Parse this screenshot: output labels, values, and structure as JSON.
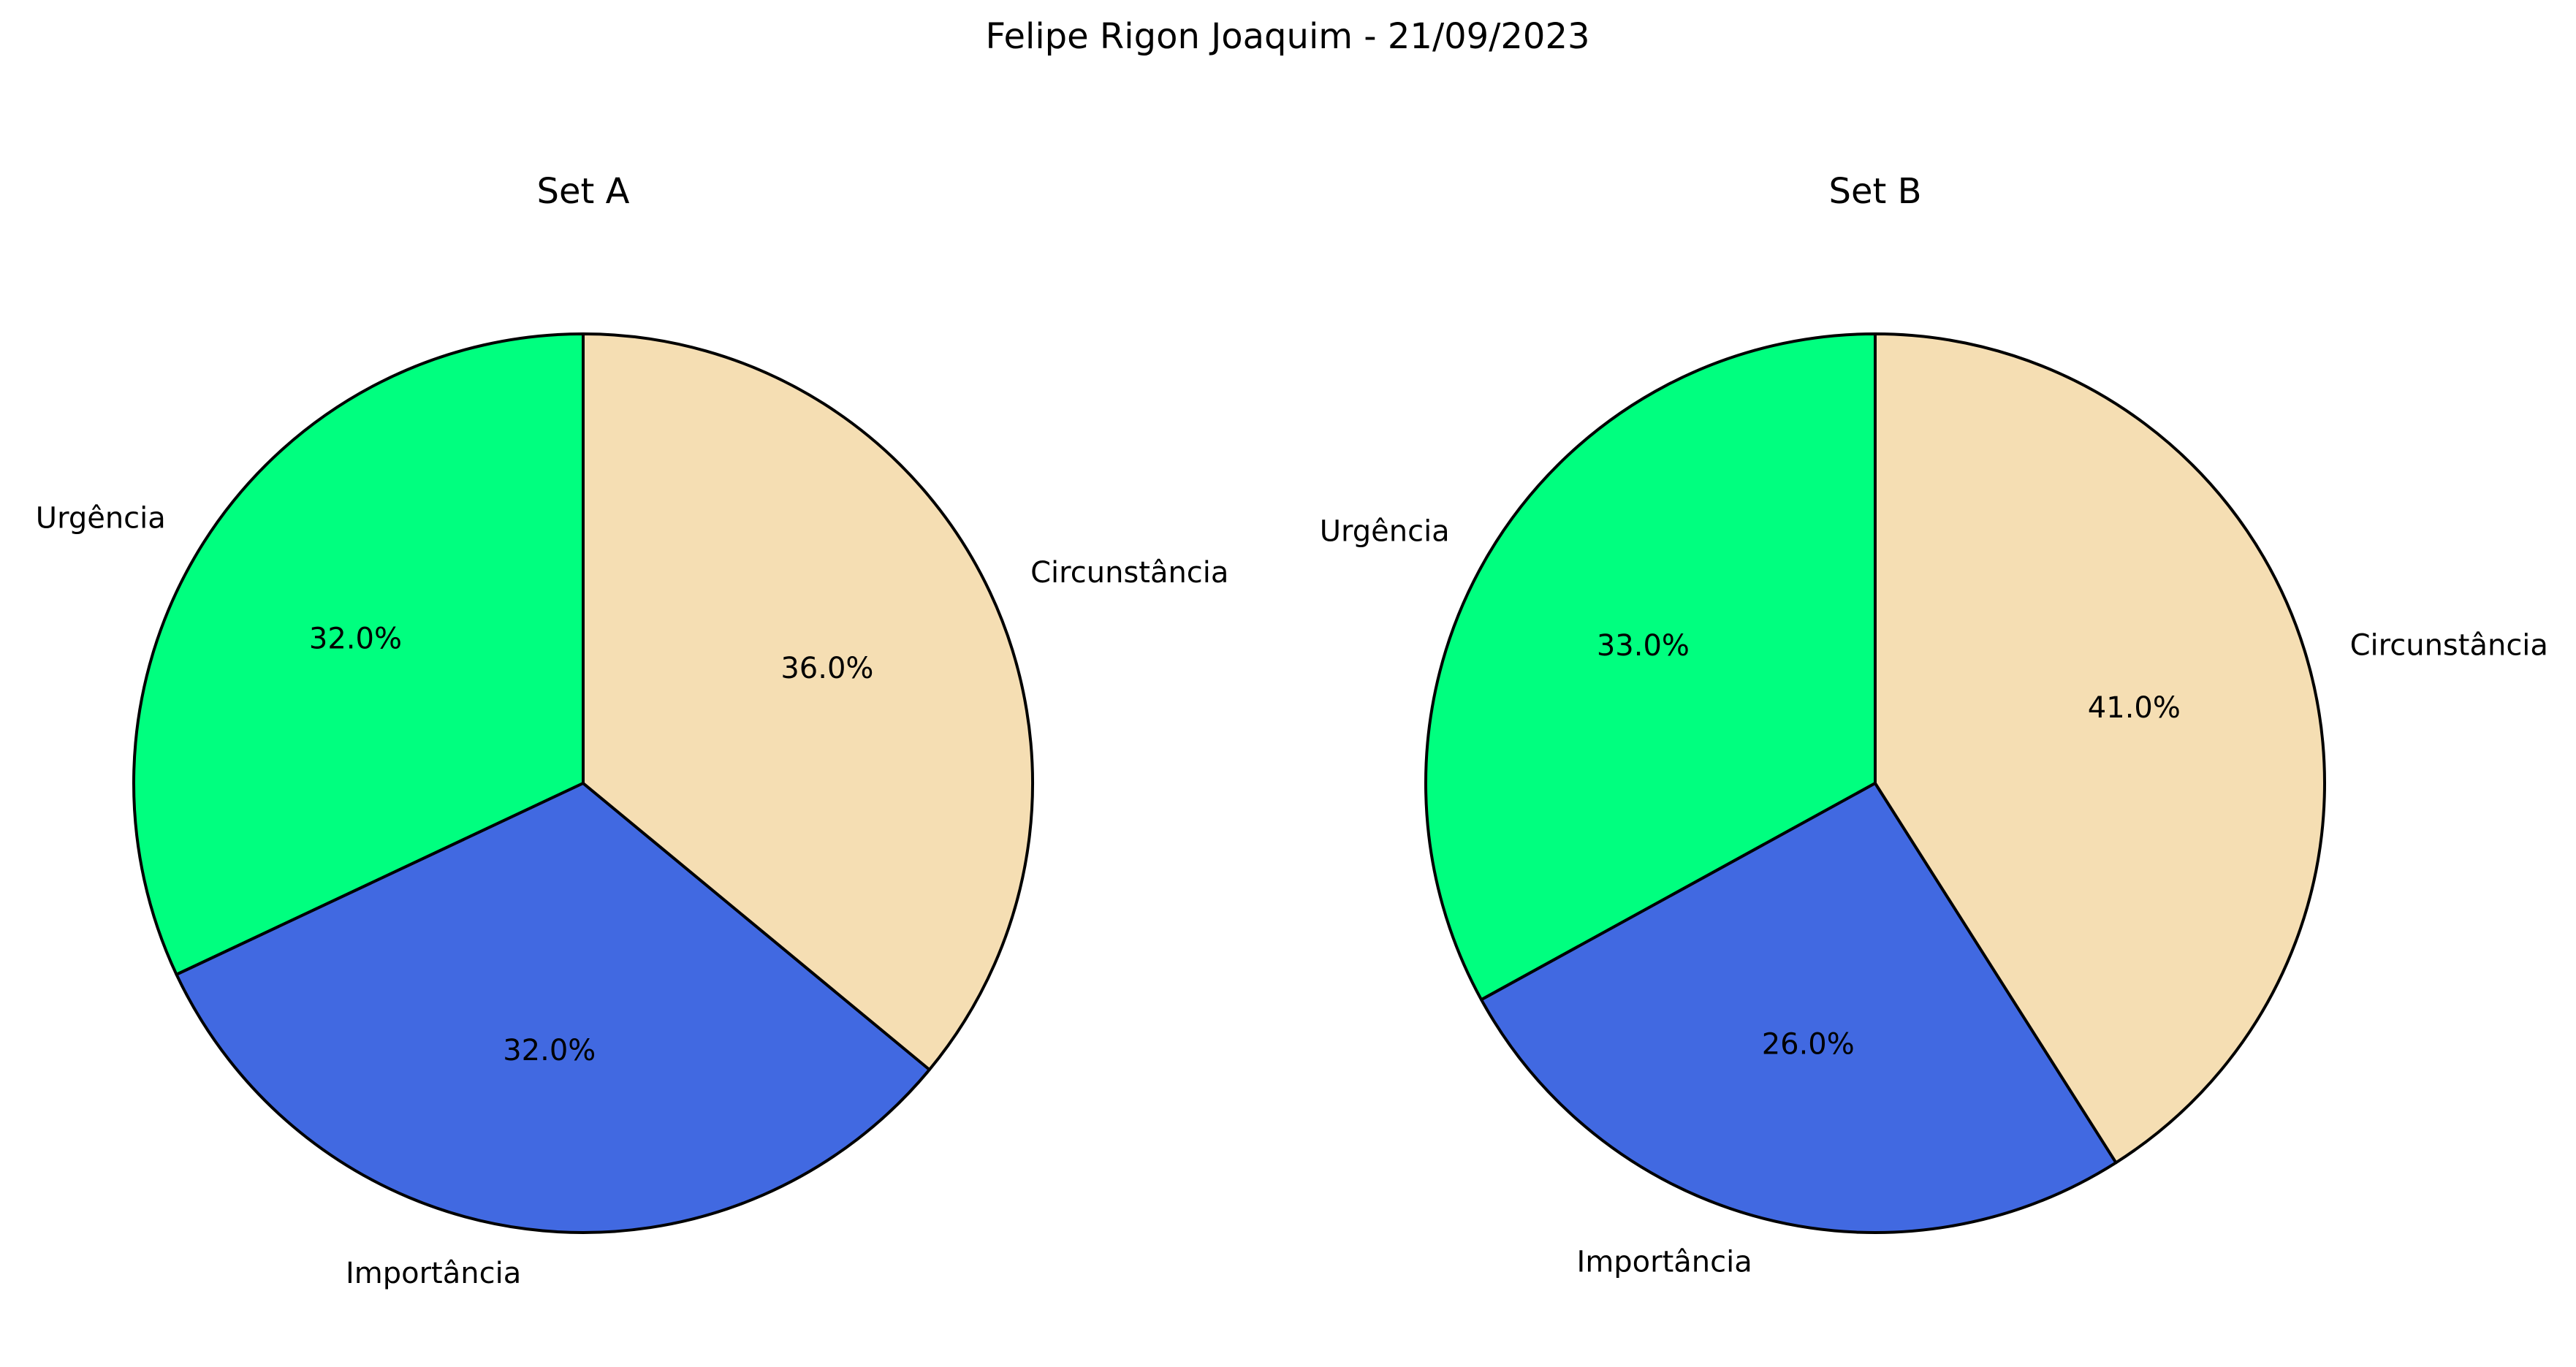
{
  "suptitle": "Felipe Rigon Joaquim - 21/09/2023",
  "chart_data": [
    {
      "type": "pie",
      "title": "Set A",
      "categories": [
        "Urgência",
        "Importância",
        "Circunstância"
      ],
      "values": [
        32.0,
        32.0,
        36.0
      ],
      "value_labels": [
        "32.0%",
        "32.0%",
        "36.0%"
      ],
      "colors": [
        "#00ff7f",
        "#4169e1",
        "#f5deb3"
      ],
      "start_angle_deg": 90,
      "direction": "counterclockwise",
      "edge_color": "#000000",
      "legend": "none"
    },
    {
      "type": "pie",
      "title": "Set B",
      "categories": [
        "Urgência",
        "Importância",
        "Circunstância"
      ],
      "values": [
        33.0,
        26.0,
        41.0
      ],
      "value_labels": [
        "33.0%",
        "26.0%",
        "41.0%"
      ],
      "colors": [
        "#00ff7f",
        "#4169e1",
        "#f5deb3"
      ],
      "start_angle_deg": 90,
      "direction": "counterclockwise",
      "edge_color": "#000000",
      "legend": "none"
    }
  ]
}
